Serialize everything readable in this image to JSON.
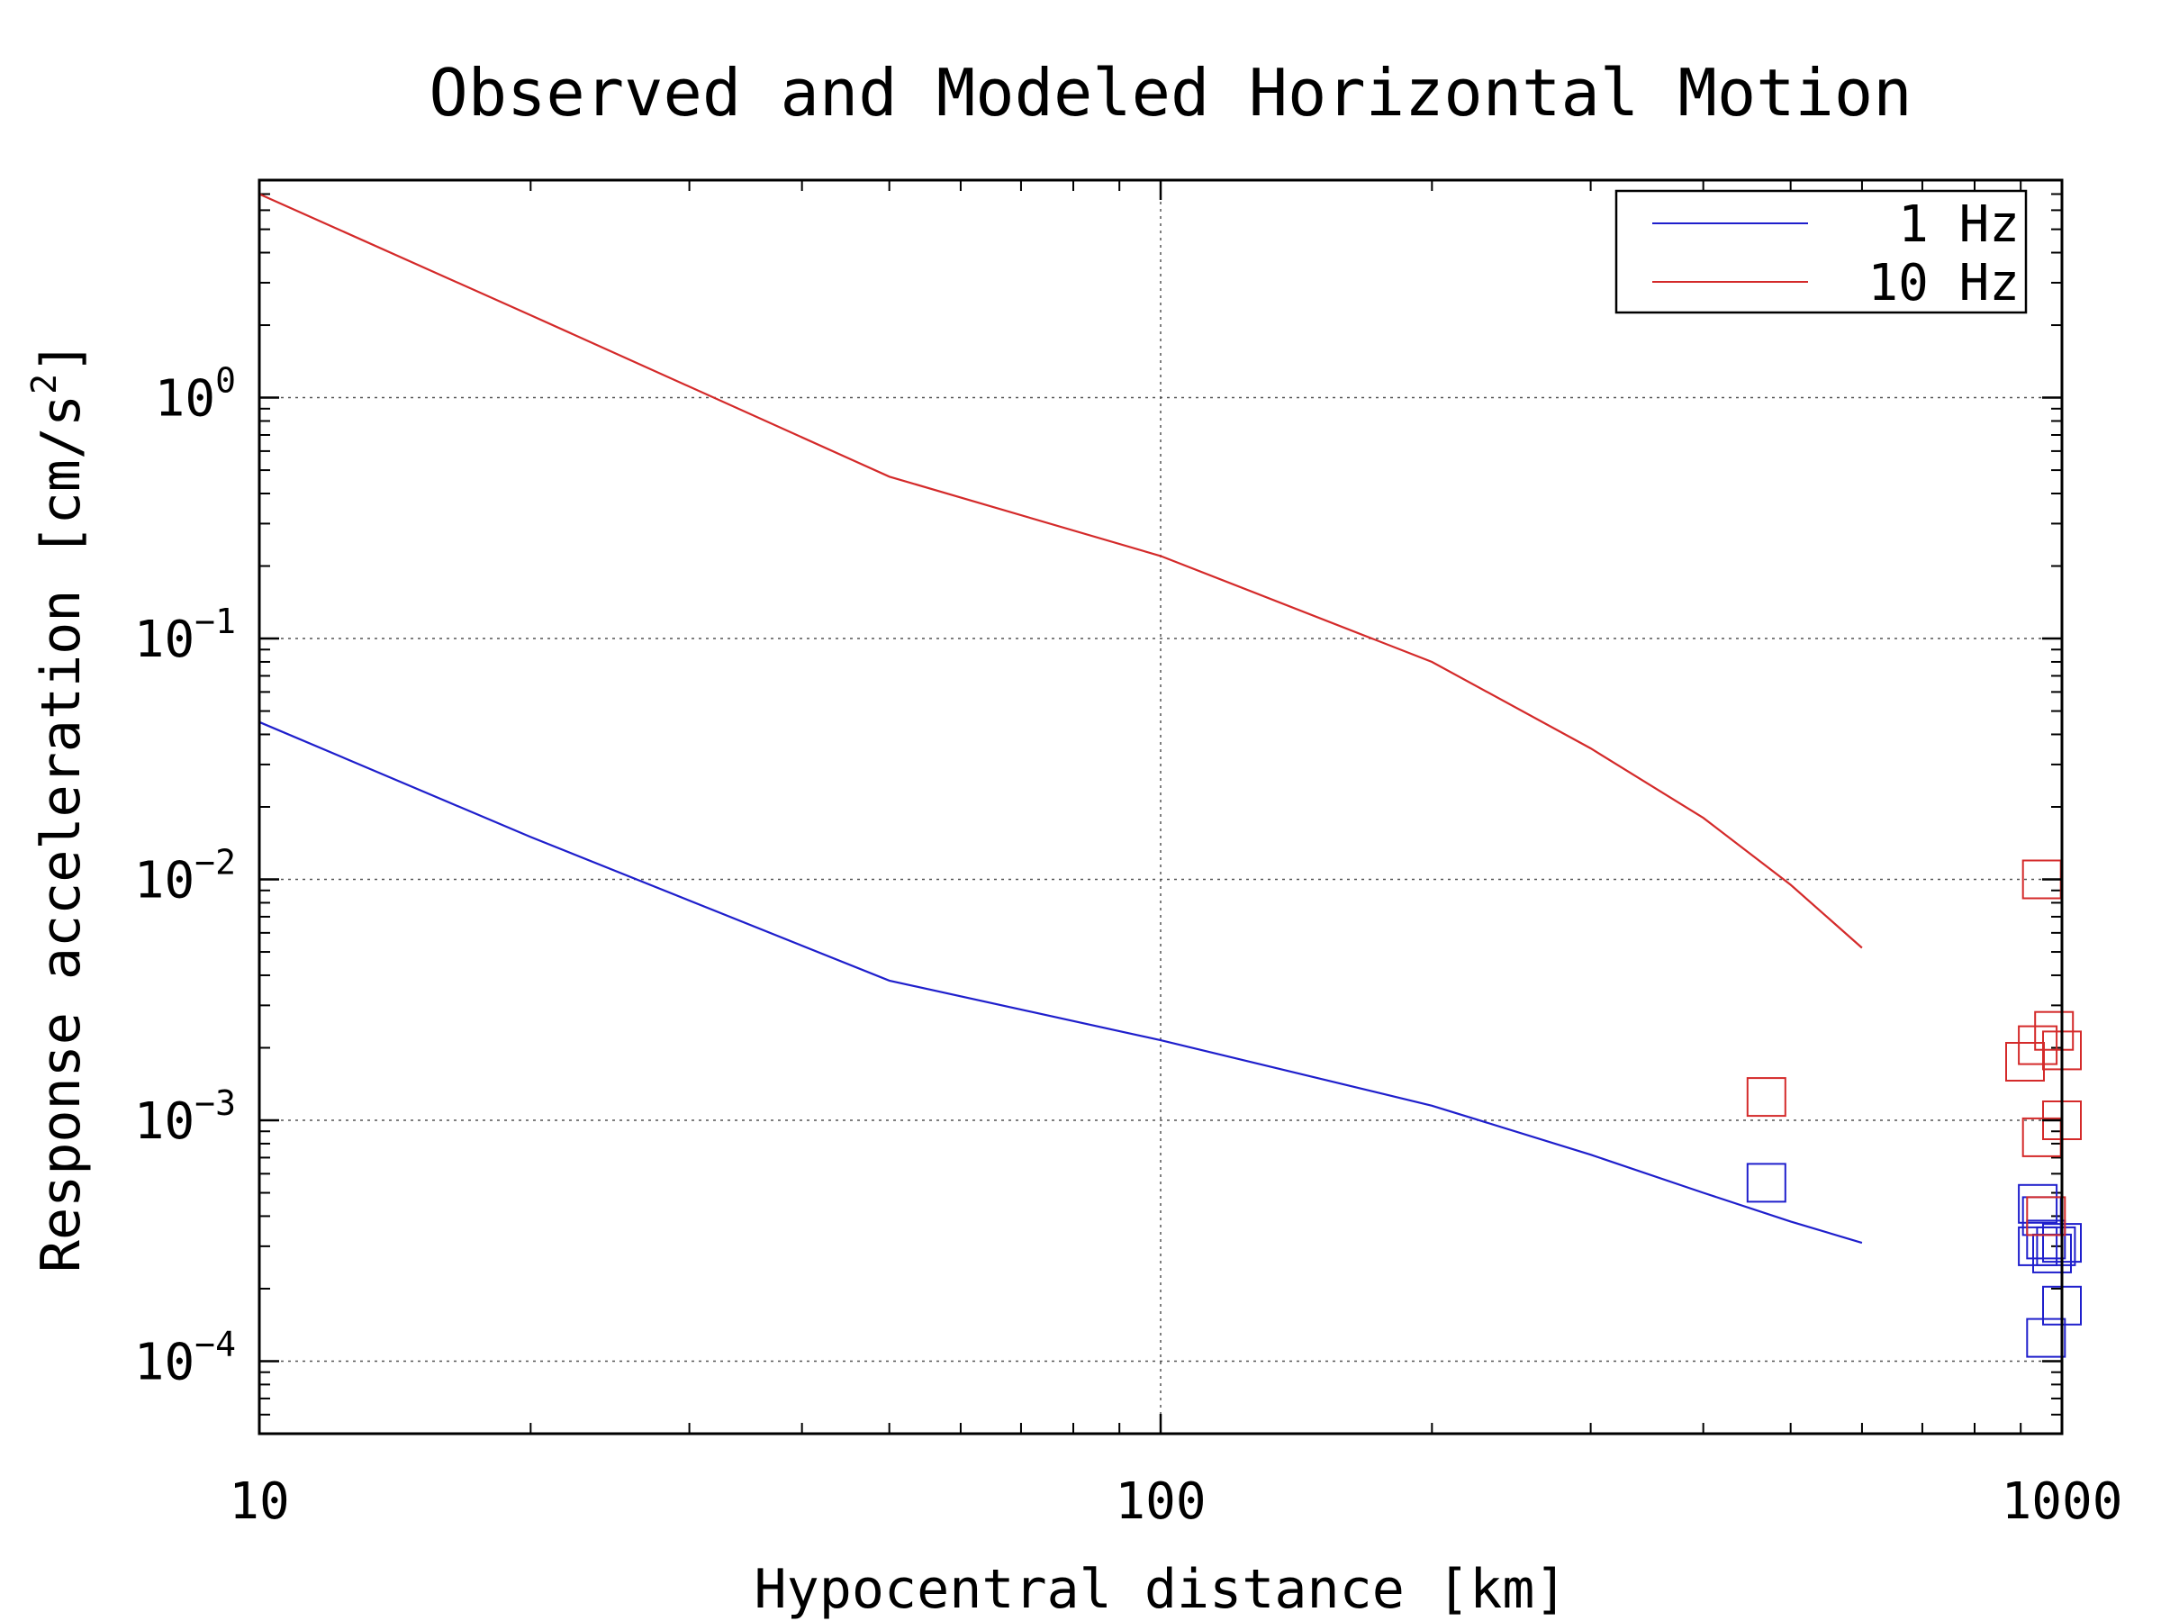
{
  "chart_data": {
    "type": "line",
    "title": "Observed and Modeled Horizontal Motion",
    "xlabel": "Hypocentral distance [km]",
    "ylabel_base": "Response acceleration [cm/s",
    "ylabel_exp": "2",
    "ylabel_close": "]",
    "x_scale": "log",
    "y_scale": "log",
    "xlim": [
      10,
      1000
    ],
    "ylim": [
      5e-05,
      8
    ],
    "x_ticks": [
      {
        "value": 10,
        "label": "10"
      },
      {
        "value": 100,
        "label": "100"
      },
      {
        "value": 1000,
        "label": "1000"
      }
    ],
    "y_ticks": [
      {
        "value": 1,
        "base": "10",
        "exp": "0"
      },
      {
        "value": 0.1,
        "base": "10",
        "exp": "−1"
      },
      {
        "value": 0.01,
        "base": "10",
        "exp": "−2"
      },
      {
        "value": 0.001,
        "base": "10",
        "exp": "−3"
      },
      {
        "value": 0.0001,
        "base": "10",
        "exp": "−4"
      }
    ],
    "grid": true,
    "legend_position": "top-right",
    "series": [
      {
        "name": "1 Hz",
        "color": "#1f1fcc",
        "line": {
          "x": [
            10,
            20,
            50,
            100,
            200,
            300,
            400,
            500,
            600
          ],
          "y": [
            0.045,
            0.015,
            0.0038,
            0.00215,
            0.00115,
            0.00072,
            0.0005,
            0.00038,
            0.00031
          ]
        },
        "observed": {
          "x": [
            470,
            940,
            950,
            940,
            960,
            975,
            985,
            1000,
            960,
            1000
          ],
          "y": [
            0.00055,
            0.00045,
            0.0004,
            0.0003,
            0.00032,
            0.00028,
            0.0003,
            0.00017,
            0.000125,
            0.00031
          ]
        }
      },
      {
        "name": "10 Hz",
        "color": "#d42a2a",
        "line": {
          "x": [
            10,
            20,
            50,
            100,
            200,
            300,
            400,
            500,
            600
          ],
          "y": [
            7.0,
            2.2,
            0.47,
            0.22,
            0.08,
            0.035,
            0.018,
            0.0095,
            0.0052
          ]
        },
        "observed": {
          "x": [
            470,
            950,
            910,
            940,
            980,
            1000,
            950,
            1000,
            960
          ],
          "y": [
            0.00125,
            0.01,
            0.00175,
            0.00205,
            0.00235,
            0.00195,
            0.00085,
            0.001,
            0.0004
          ]
        }
      }
    ]
  }
}
